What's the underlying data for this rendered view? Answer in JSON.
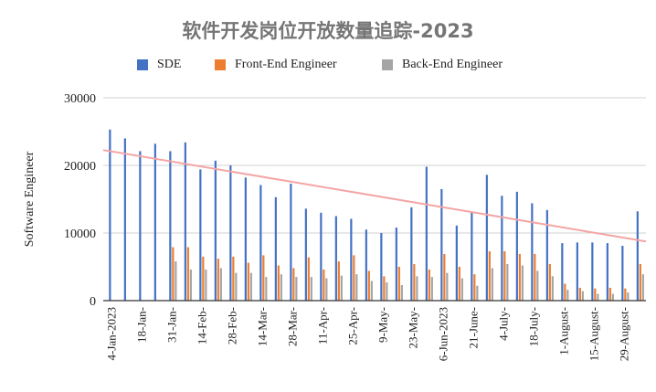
{
  "chart_data": {
    "type": "bar",
    "title": "软件开发岗位开放数量追踪-2023",
    "xlabel": "",
    "ylabel": "Software Engineer",
    "ylim": [
      0,
      30000
    ],
    "yticks": [
      "0",
      "10000",
      "20000",
      "30000"
    ],
    "grid": true,
    "legend_position": "top",
    "categories": [
      "4-Jan-2023",
      "",
      "18-Jan-",
      "",
      "31-Jan-",
      "",
      "14-Feb-",
      "",
      "28-Feb-",
      "",
      "14-Mar-",
      "",
      "28-Mar-",
      "",
      "11-Apr-",
      "",
      "25-Apr-",
      "",
      "9-May-",
      "",
      "23-May-",
      "",
      "6-Jun-2023",
      "",
      "21-June-",
      "",
      "4-July-",
      "",
      "18-July-",
      "",
      "1-August-",
      "",
      "15-August-",
      "",
      "29-August-",
      ""
    ],
    "series": [
      {
        "name": "SDE",
        "color": "#4472c4",
        "values": [
          25300,
          24000,
          22100,
          23200,
          22100,
          23400,
          19400,
          20700,
          20000,
          18200,
          17100,
          15300,
          17300,
          13600,
          13000,
          12500,
          12100,
          10500,
          10000,
          10800,
          13800,
          19800,
          16500,
          11100,
          13200,
          18600,
          15500,
          16100,
          14400,
          13400,
          8500,
          8600,
          8600,
          8500,
          8100,
          13200
        ]
      },
      {
        "name": "Front-End Engineer",
        "color": "#ed7d31",
        "values": [
          null,
          null,
          null,
          null,
          7900,
          7900,
          6500,
          6200,
          6500,
          5600,
          6700,
          5200,
          4800,
          6400,
          4600,
          5800,
          6700,
          4400,
          3600,
          5000,
          5400,
          4600,
          6900,
          5000,
          3900,
          7300,
          7300,
          6900,
          6900,
          5400,
          2500,
          1900,
          1800,
          1900,
          1800,
          5400
        ]
      },
      {
        "name": "Back-End Engineer",
        "color": "#a5a5a5",
        "values": [
          null,
          null,
          null,
          null,
          5800,
          4600,
          4600,
          4800,
          4100,
          4100,
          3500,
          3900,
          3500,
          3500,
          3300,
          3700,
          3900,
          2900,
          2700,
          2300,
          3600,
          3500,
          4100,
          3300,
          2200,
          4800,
          5400,
          5200,
          4400,
          3600,
          1600,
          1400,
          1000,
          1000,
          1200,
          3900
        ]
      }
    ],
    "trendline": {
      "series": "SDE",
      "type": "linear",
      "color": "#f4a5a5"
    }
  }
}
